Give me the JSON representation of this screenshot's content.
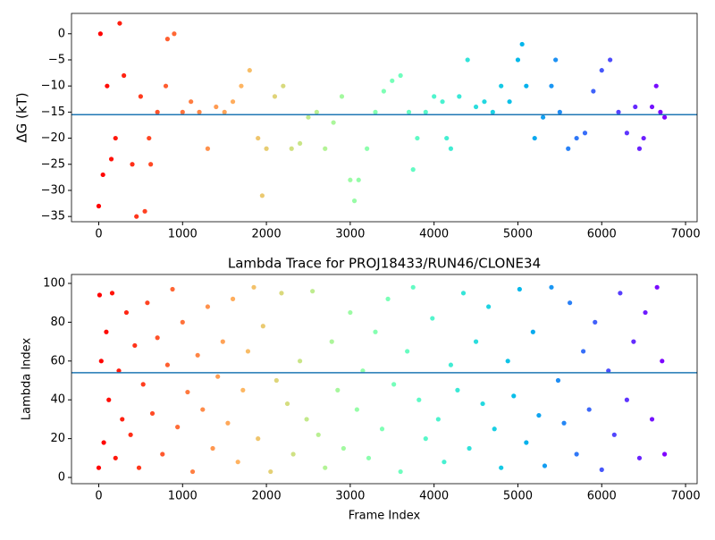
{
  "chart_data": [
    {
      "type": "scatter",
      "ylabel": "ΔG (kT)",
      "colormap": "rainbow",
      "hline": -15.5,
      "hline_color": "#1f77b4",
      "xlim": [
        -325,
        7138
      ],
      "xticks": [
        0,
        1000,
        2000,
        3000,
        4000,
        5000,
        6000,
        7000
      ],
      "ylim": [
        -36,
        3.9
      ],
      "yticks": [
        {
          "value": -35,
          "label": "−35"
        },
        {
          "value": -30,
          "label": "−30"
        },
        {
          "value": -25,
          "label": "−25"
        },
        {
          "value": -20,
          "label": "−20"
        },
        {
          "value": -15,
          "label": "−15"
        },
        {
          "value": -10,
          "label": "−10"
        },
        {
          "value": -5,
          "label": "−5"
        },
        0
      ],
      "x": [
        0,
        20,
        50,
        100,
        150,
        200,
        250,
        300,
        400,
        450,
        500,
        550,
        600,
        620,
        700,
        800,
        820,
        900,
        1000,
        1100,
        1200,
        1300,
        1400,
        1500,
        1600,
        1700,
        1800,
        1900,
        1950,
        2000,
        2100,
        2200,
        2300,
        2400,
        2500,
        2600,
        2700,
        2800,
        2900,
        3000,
        3050,
        3100,
        3200,
        3300,
        3400,
        3500,
        3600,
        3700,
        3750,
        3800,
        3900,
        4000,
        4100,
        4150,
        4200,
        4300,
        4400,
        4500,
        4600,
        4700,
        4800,
        4900,
        5000,
        5050,
        5100,
        5200,
        5300,
        5400,
        5450,
        5500,
        5600,
        5700,
        5800,
        5900,
        6000,
        6100,
        6200,
        6300,
        6400,
        6450,
        6500,
        6600,
        6650,
        6700,
        6750
      ],
      "values": [
        -33,
        0,
        -27,
        -10,
        -24,
        -20,
        2,
        -8,
        -25,
        -35,
        -12,
        -34,
        -20,
        -25,
        -15,
        -10,
        -1,
        0,
        -15,
        -13,
        -15,
        -22,
        -14,
        -15,
        -13,
        -10,
        -7,
        -20,
        -31,
        -22,
        -12,
        -10,
        -22,
        -21,
        -16,
        -15,
        -22,
        -17,
        -12,
        -28,
        -32,
        -28,
        -22,
        -15,
        -11,
        -9,
        -8,
        -15,
        -26,
        -20,
        -15,
        -12,
        -13,
        -20,
        -22,
        -12,
        -5,
        -14,
        -13,
        -15,
        -10,
        -13,
        -5,
        -2,
        -10,
        -20,
        -16,
        -10,
        -5,
        -15,
        -22,
        -20,
        -19,
        -11,
        -7,
        -5,
        -15,
        -19,
        -14,
        -22,
        -20,
        -14,
        -10,
        -15,
        -16
      ]
    },
    {
      "type": "scatter",
      "title": "Lambda Trace for PROJ18433/RUN46/CLONE34",
      "xlabel": "Frame Index",
      "ylabel": "Lambda Index",
      "colormap": "rainbow",
      "hline": 54,
      "hline_color": "#1f77b4",
      "xlim": [
        -325,
        7138
      ],
      "xticks": [
        0,
        1000,
        2000,
        3000,
        4000,
        5000,
        6000,
        7000
      ],
      "ylim": [
        -3.2,
        104.6
      ],
      "yticks": [
        0,
        20,
        40,
        60,
        80,
        100
      ],
      "x": [
        0,
        10,
        30,
        60,
        90,
        120,
        160,
        200,
        240,
        280,
        330,
        380,
        430,
        480,
        530,
        580,
        640,
        700,
        760,
        820,
        880,
        940,
        1000,
        1060,
        1120,
        1180,
        1240,
        1300,
        1360,
        1420,
        1480,
        1540,
        1600,
        1660,
        1720,
        1780,
        1850,
        1900,
        1960,
        2050,
        2120,
        2180,
        2250,
        2320,
        2400,
        2480,
        2550,
        2620,
        2700,
        2780,
        2850,
        2920,
        3000,
        3080,
        3150,
        3220,
        3300,
        3380,
        3450,
        3520,
        3600,
        3680,
        3750,
        3820,
        3900,
        3980,
        4050,
        4120,
        4200,
        4280,
        4350,
        4420,
        4500,
        4580,
        4650,
        4720,
        4800,
        4880,
        4950,
        5020,
        5100,
        5180,
        5250,
        5320,
        5400,
        5480,
        5550,
        5620,
        5700,
        5780,
        5850,
        5920,
        6000,
        6080,
        6150,
        6220,
        6300,
        6380,
        6450,
        6520,
        6600,
        6660,
        6720,
        6750
      ],
      "values": [
        5,
        94,
        60,
        18,
        75,
        40,
        95,
        10,
        55,
        30,
        85,
        22,
        68,
        5,
        48,
        90,
        33,
        72,
        12,
        58,
        97,
        26,
        80,
        44,
        3,
        63,
        35,
        88,
        15,
        52,
        70,
        28,
        92,
        8,
        45,
        65,
        98,
        20,
        78,
        3,
        50,
        95,
        38,
        12,
        60,
        30,
        96,
        22,
        5,
        70,
        45,
        15,
        85,
        35,
        55,
        10,
        75,
        25,
        92,
        48,
        3,
        65,
        98,
        40,
        20,
        82,
        30,
        8,
        58,
        45,
        95,
        15,
        70,
        38,
        88,
        25,
        5,
        60,
        42,
        97,
        18,
        75,
        32,
        6,
        98,
        50,
        28,
        90,
        12,
        65,
        35,
        80,
        4,
        55,
        22,
        95,
        40,
        70,
        10,
        85,
        30,
        98,
        60,
        12
      ]
    }
  ]
}
